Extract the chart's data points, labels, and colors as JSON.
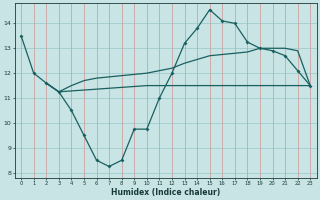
{
  "xlabel": "Humidex (Indice chaleur)",
  "background_color": "#c8e4e4",
  "line_color": "#1a6060",
  "xlim": [
    -0.5,
    23.5
  ],
  "ylim": [
    7.8,
    14.8
  ],
  "yticks": [
    8,
    9,
    10,
    11,
    12,
    13,
    14
  ],
  "xticks": [
    0,
    1,
    2,
    3,
    4,
    5,
    6,
    7,
    8,
    9,
    10,
    11,
    12,
    13,
    14,
    15,
    16,
    17,
    18,
    19,
    20,
    21,
    22,
    23
  ],
  "line1_x": [
    0,
    1,
    2,
    3,
    4,
    5,
    6,
    7,
    8,
    9,
    10,
    11,
    12,
    13,
    14,
    15,
    16,
    17,
    18,
    19,
    20,
    21,
    22,
    23
  ],
  "line1_y": [
    13.5,
    12.0,
    11.6,
    11.25,
    10.5,
    9.5,
    8.5,
    8.25,
    8.5,
    9.75,
    9.75,
    11.0,
    12.0,
    13.2,
    13.8,
    14.55,
    14.1,
    14.0,
    13.25,
    13.0,
    12.9,
    12.7,
    12.1,
    11.5
  ],
  "line2_x": [
    2,
    3,
    10,
    11,
    12,
    13,
    14,
    15,
    16,
    17,
    18,
    19,
    20,
    21,
    22,
    23
  ],
  "line2_y": [
    11.6,
    11.25,
    11.5,
    11.5,
    11.5,
    11.5,
    11.5,
    11.5,
    11.5,
    11.5,
    11.5,
    11.5,
    11.5,
    11.5,
    11.5,
    11.5
  ],
  "line3_x": [
    2,
    3,
    4,
    5,
    6,
    7,
    8,
    9,
    10,
    11,
    12,
    13,
    14,
    15,
    16,
    17,
    18,
    19,
    20,
    21,
    22,
    23
  ],
  "line3_y": [
    11.6,
    11.25,
    11.5,
    11.7,
    11.8,
    11.85,
    11.9,
    11.95,
    12.0,
    12.1,
    12.2,
    12.4,
    12.55,
    12.7,
    12.75,
    12.8,
    12.85,
    13.0,
    13.0,
    13.0,
    12.9,
    11.5
  ]
}
